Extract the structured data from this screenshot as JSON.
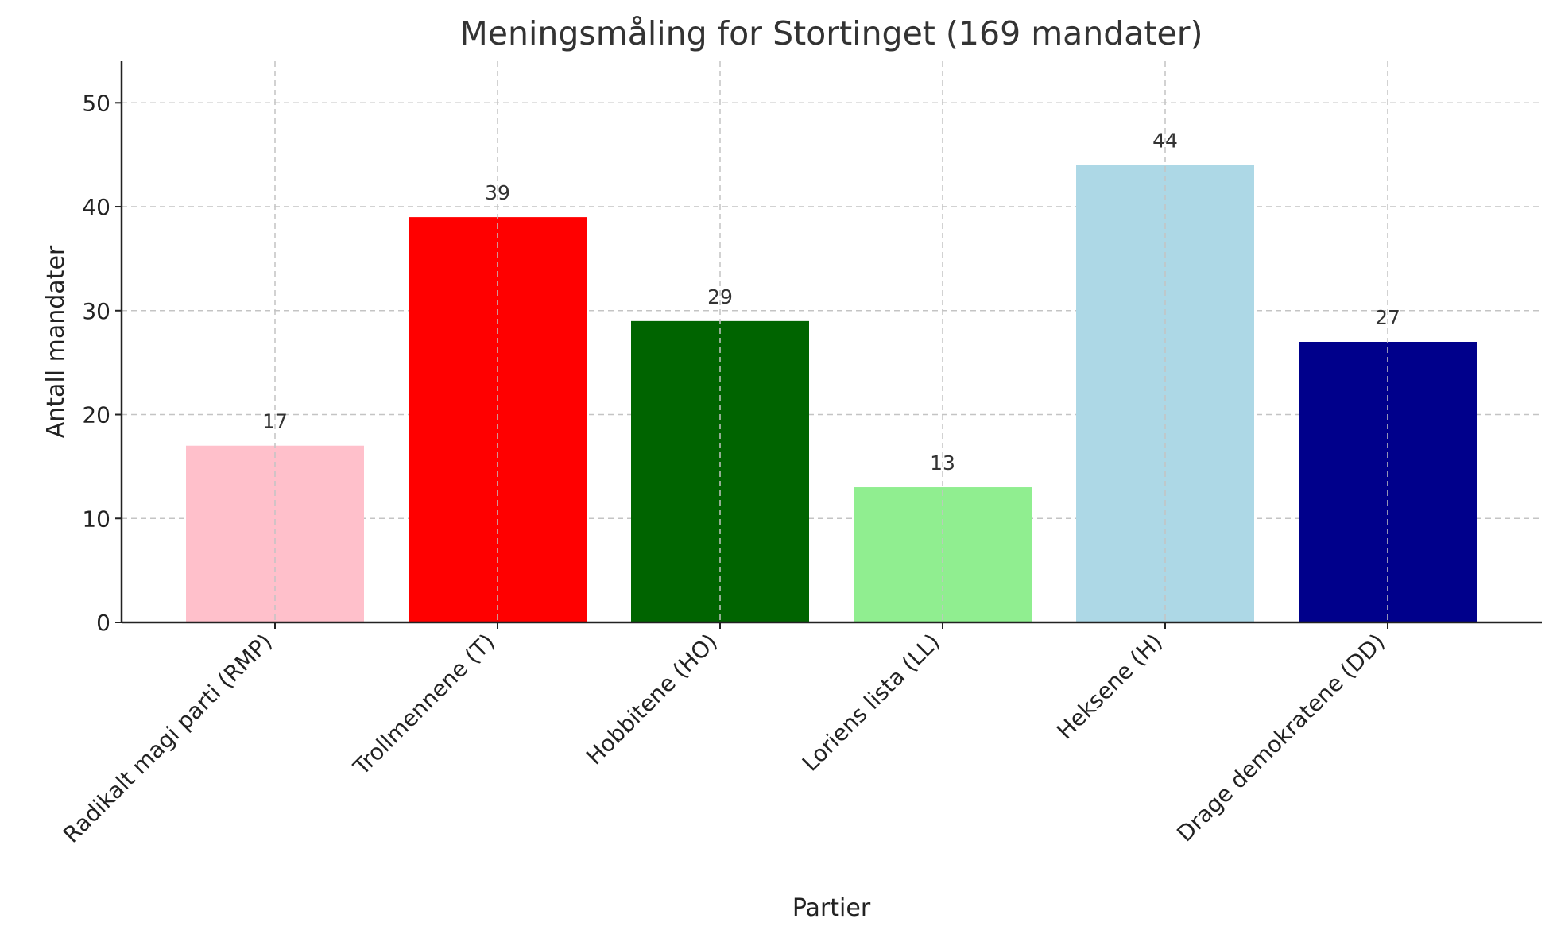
{
  "chart_data": {
    "type": "bar",
    "title": "Meningsmåling for Stortinget (169 mandater)",
    "xlabel": "Partier",
    "ylabel": "Antall mandater",
    "categories": [
      "Radikalt magi parti (RMP)",
      "Trollmennene (T)",
      "Hobbitene (HO)",
      "Loriens lista (LL)",
      "Heksene (H)",
      "Drage demokratene (DD)"
    ],
    "values": [
      17,
      39,
      29,
      13,
      44,
      27
    ],
    "colors": [
      "#ffc0cb",
      "#ff0000",
      "#006400",
      "#90ee90",
      "#add8e6",
      "#00008b"
    ],
    "ylim": [
      0,
      54
    ],
    "yticks": [
      0,
      10,
      20,
      30,
      40,
      50
    ],
    "grid": true
  }
}
